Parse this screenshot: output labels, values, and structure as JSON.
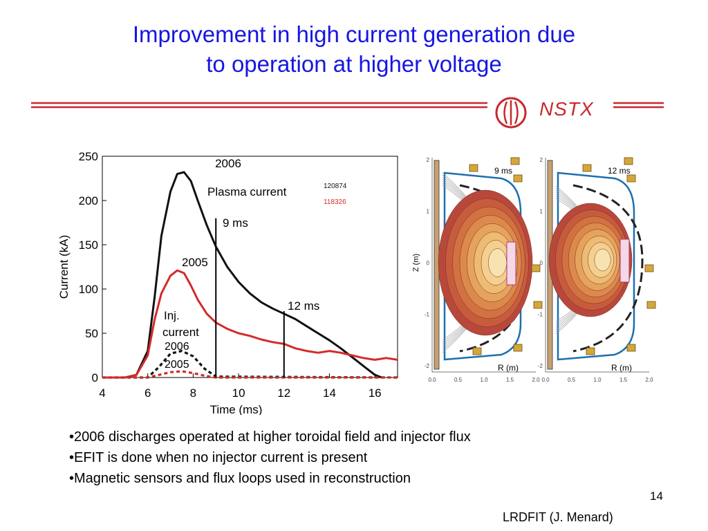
{
  "slide": {
    "title_line1": "Improvement in high current generation due",
    "title_line2": "to operation at higher voltage",
    "logo_text": "NSTX",
    "page_number": "14",
    "credit": "LRDFIT (J. Menard)",
    "bullets": [
      "•2006 discharges operated at higher toroidal field and injector flux",
      "•EFIT is done when no injector current is present",
      "•Magnetic sensors and flux loops used in reconstruction"
    ],
    "colors": {
      "title": "#1616e0",
      "accent": "#c8282c",
      "shot_2006": "#111111",
      "shot_2005": "#d42a2a"
    }
  },
  "chart_data": [
    {
      "type": "line",
      "xlabel": "Time (ms)",
      "ylabel": "Current (kA)",
      "xlim": [
        4,
        17
      ],
      "ylim": [
        0,
        250
      ],
      "xticks": [
        "4",
        "6",
        "8",
        "10",
        "12",
        "14",
        "16"
      ],
      "yticks": [
        "0",
        "50",
        "100",
        "150",
        "200",
        "250"
      ],
      "legend": [
        "120874",
        "118326"
      ],
      "annotations": {
        "plasma_current": "Plasma current",
        "label_2006": "2006",
        "label_2005": "2005",
        "inj_line1": "Inj.",
        "inj_line2": "current",
        "inj_2006": "2006",
        "inj_2005": "2005",
        "marker_9": "9 ms",
        "marker_12": "12 ms"
      },
      "markers": [
        {
          "x": 9,
          "y_top": 180,
          "label": "9 ms"
        },
        {
          "x": 12,
          "y_top": 75,
          "label": "12 ms"
        }
      ],
      "series": [
        {
          "name": "120874",
          "kind": "plasma",
          "color": "#111111",
          "x": [
            4,
            5,
            5.5,
            6,
            6.3,
            6.6,
            7,
            7.3,
            7.6,
            7.9,
            8.2,
            8.6,
            9,
            9.5,
            10,
            10.5,
            11,
            11.5,
            12,
            12.5,
            13,
            13.5,
            14,
            14.5,
            15,
            15.5,
            16,
            16.3
          ],
          "y": [
            0,
            0,
            3,
            30,
            90,
            160,
            210,
            230,
            232,
            222,
            200,
            172,
            148,
            125,
            108,
            95,
            85,
            78,
            72,
            66,
            58,
            50,
            42,
            33,
            23,
            13,
            3,
            0
          ]
        },
        {
          "name": "118326",
          "kind": "plasma",
          "color": "#d42a2a",
          "x": [
            4,
            5,
            5.5,
            6,
            6.3,
            6.6,
            7,
            7.3,
            7.6,
            7.9,
            8.2,
            8.6,
            9,
            9.5,
            10,
            10.5,
            11,
            11.5,
            12,
            12.5,
            13,
            13.5,
            14,
            14.5,
            15,
            15.5,
            16,
            16.5,
            17
          ],
          "y": [
            0,
            0,
            3,
            25,
            65,
            95,
            115,
            121,
            118,
            104,
            88,
            72,
            62,
            55,
            50,
            47,
            43,
            40,
            38,
            33,
            30,
            28,
            30,
            28,
            25,
            22,
            20,
            22,
            20
          ]
        },
        {
          "name": "2006",
          "kind": "injector",
          "color": "#111111",
          "x": [
            4,
            6,
            6.5,
            7,
            7.5,
            8,
            8.5,
            9,
            17
          ],
          "y": [
            0,
            0,
            12,
            27,
            30,
            24,
            10,
            1,
            0
          ]
        },
        {
          "name": "2005",
          "kind": "injector",
          "color": "#d42a2a",
          "x": [
            4,
            6,
            6.5,
            7,
            7.5,
            8,
            8.5,
            9,
            17
          ],
          "y": [
            0,
            0,
            3,
            6,
            7,
            5,
            2,
            0,
            0
          ]
        }
      ]
    },
    {
      "type": "contour",
      "panels": [
        {
          "label": "9 ms",
          "xlabel": "R (m)",
          "ylabel": "Z (m)"
        },
        {
          "label": "12 ms",
          "xlabel": "R (m)",
          "ylabel": ""
        }
      ],
      "xticks": [
        "0.0",
        "0.5",
        "1.0",
        "1.5",
        "2.0"
      ],
      "yticks": [
        "2",
        "1",
        "0",
        "-1",
        "-2"
      ],
      "xlim": [
        0,
        2
      ],
      "ylim": [
        -2.1,
        2.1
      ]
    }
  ]
}
